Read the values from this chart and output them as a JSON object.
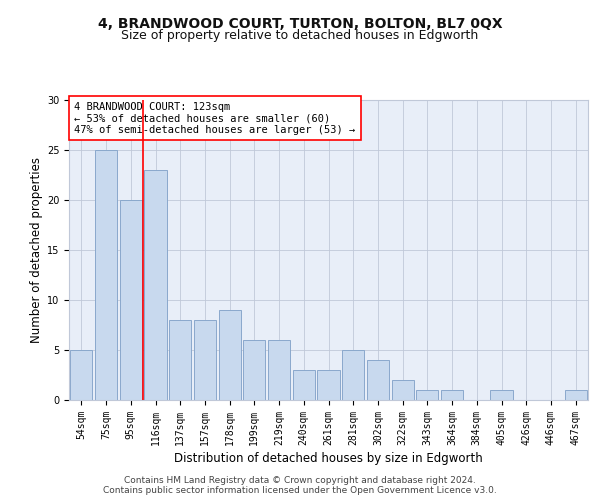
{
  "title": "4, BRANDWOOD COURT, TURTON, BOLTON, BL7 0QX",
  "subtitle": "Size of property relative to detached houses in Edgworth",
  "xlabel": "Distribution of detached houses by size in Edgworth",
  "ylabel": "Number of detached properties",
  "categories": [
    "54sqm",
    "75sqm",
    "95sqm",
    "116sqm",
    "137sqm",
    "157sqm",
    "178sqm",
    "199sqm",
    "219sqm",
    "240sqm",
    "261sqm",
    "281sqm",
    "302sqm",
    "322sqm",
    "343sqm",
    "364sqm",
    "384sqm",
    "405sqm",
    "426sqm",
    "446sqm",
    "467sqm"
  ],
  "values": [
    5,
    25,
    20,
    23,
    8,
    8,
    9,
    6,
    6,
    3,
    3,
    5,
    4,
    2,
    1,
    1,
    0,
    1,
    0,
    0,
    1
  ],
  "bar_color": "#c8d9ee",
  "bar_edge_color": "#8aa8cc",
  "grid_color": "#c0c8d8",
  "background_color": "#e8eef8",
  "annotation_box_text": "4 BRANDWOOD COURT: 123sqm\n← 53% of detached houses are smaller (60)\n47% of semi-detached houses are larger (53) →",
  "red_line_x": 2.5,
  "ylim": [
    0,
    30
  ],
  "yticks": [
    0,
    5,
    10,
    15,
    20,
    25,
    30
  ],
  "footer_line1": "Contains HM Land Registry data © Crown copyright and database right 2024.",
  "footer_line2": "Contains public sector information licensed under the Open Government Licence v3.0.",
  "title_fontsize": 10,
  "subtitle_fontsize": 9,
  "label_fontsize": 8.5,
  "tick_fontsize": 7,
  "annot_fontsize": 7.5,
  "footer_fontsize": 6.5
}
